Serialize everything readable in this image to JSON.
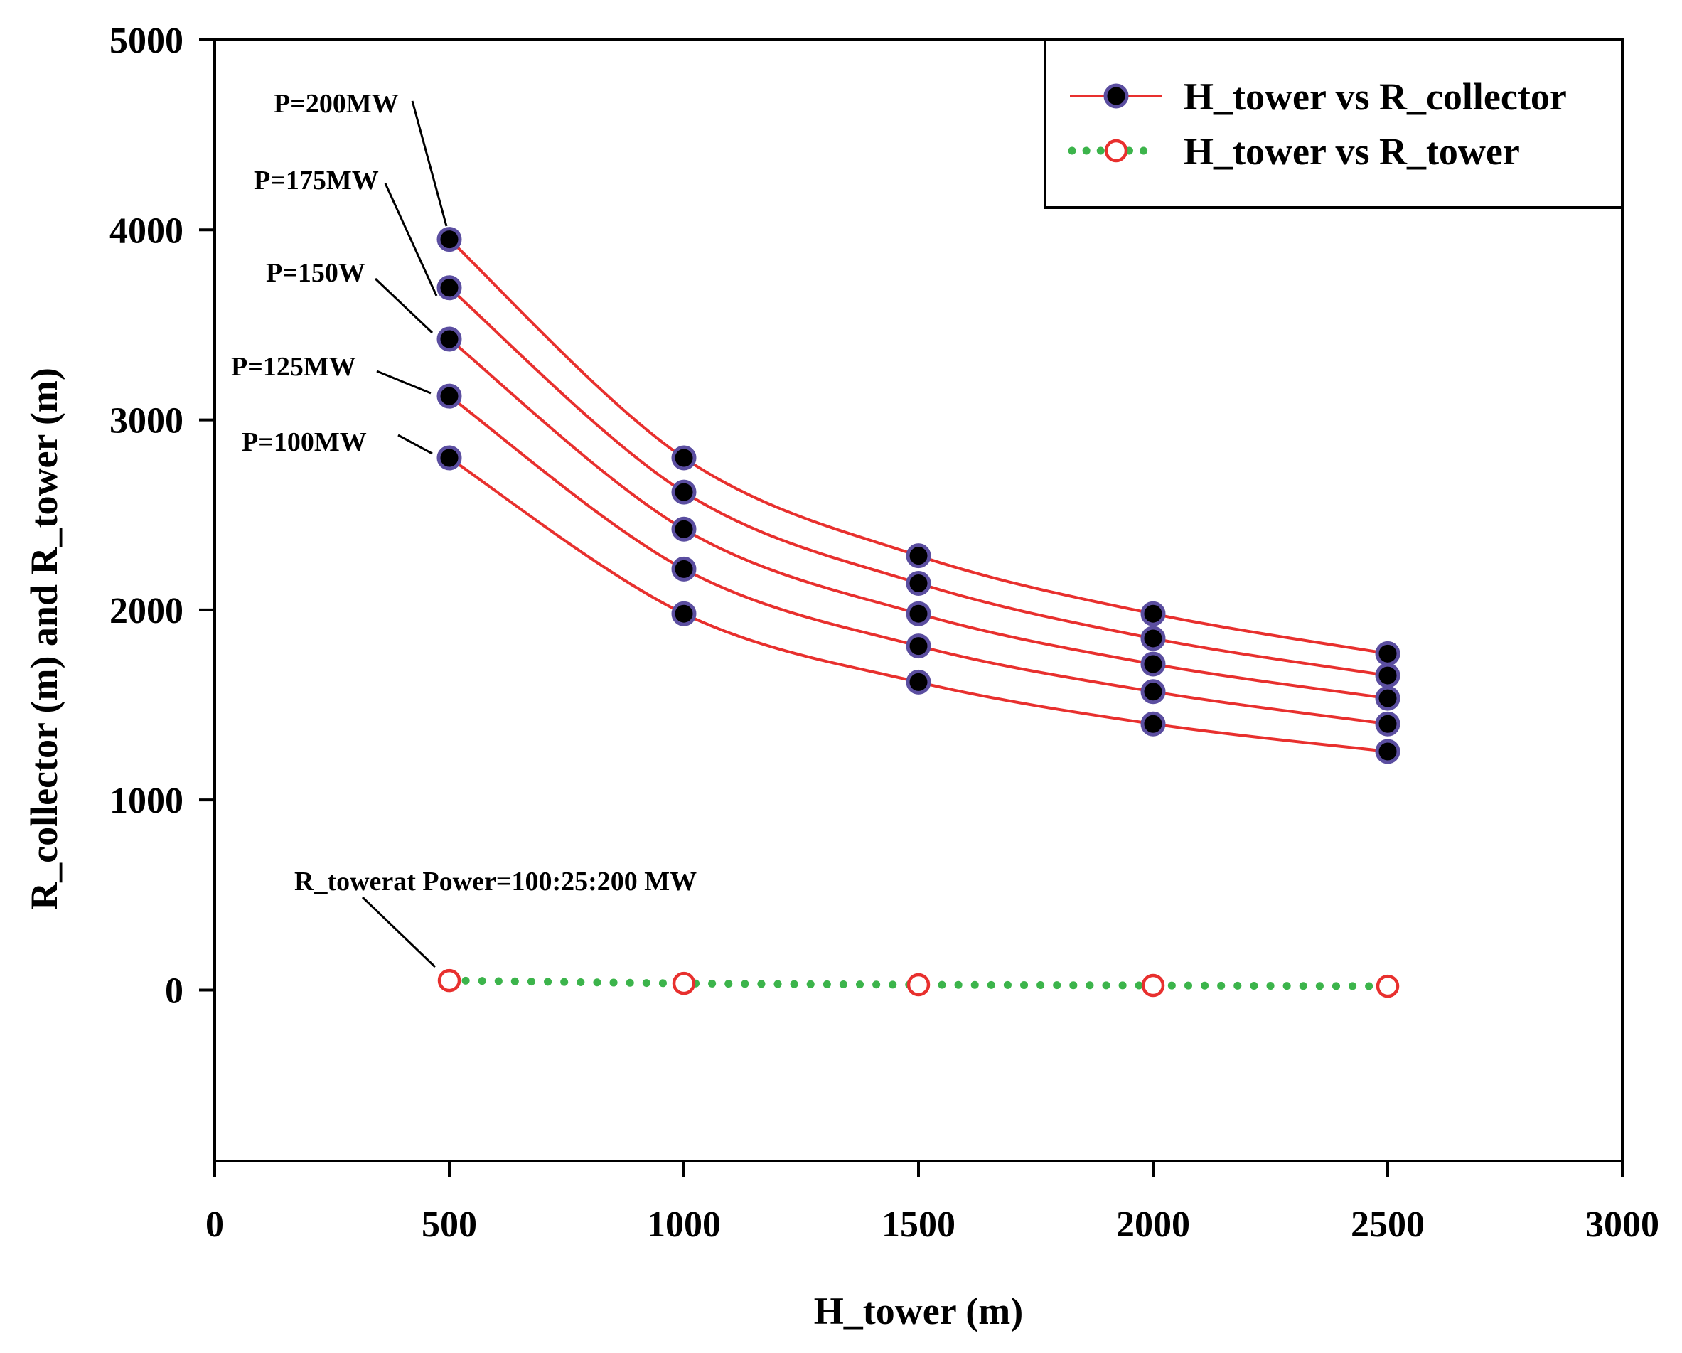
{
  "chart_data": {
    "type": "line",
    "xlabel": "H_tower (m)",
    "ylabel": "R_collector (m) and  R_tower (m)",
    "xlim": [
      0,
      3000
    ],
    "ylim": [
      -900,
      5000
    ],
    "xticks": [
      0,
      500,
      1000,
      1500,
      2000,
      2500,
      3000
    ],
    "yticks": [
      0,
      1000,
      2000,
      3000,
      4000,
      5000
    ],
    "x": [
      500,
      1000,
      1500,
      2000,
      2500
    ],
    "series": [
      {
        "name": "P=200MW",
        "group": "collector",
        "values": [
          3950,
          2800,
          2285,
          1980,
          1770
        ]
      },
      {
        "name": "P=175MW",
        "group": "collector",
        "values": [
          3695,
          2620,
          2140,
          1850,
          1655
        ]
      },
      {
        "name": "P=150W",
        "group": "collector",
        "values": [
          3425,
          2425,
          1980,
          1715,
          1535
        ]
      },
      {
        "name": "P=125MW",
        "group": "collector",
        "values": [
          3125,
          2215,
          1810,
          1570,
          1400
        ]
      },
      {
        "name": "P=100MW",
        "group": "collector",
        "values": [
          2800,
          1980,
          1620,
          1400,
          1255
        ]
      },
      {
        "name": "R_tower",
        "group": "tower",
        "values": [
          50,
          35,
          28,
          24,
          20
        ]
      }
    ],
    "legend": {
      "position": "top-right",
      "entries": [
        "H_tower vs R_collector",
        "H_tower vs R_tower"
      ]
    },
    "annotations": [
      {
        "text": "P=200MW",
        "target_series": 0
      },
      {
        "text": "P=175MW",
        "target_series": 1
      },
      {
        "text": "P=150W",
        "target_series": 2
      },
      {
        "text": "P=125MW",
        "target_series": 3
      },
      {
        "text": "P=100MW",
        "target_series": 4
      },
      {
        "text": "R_towerat Power=100:25:200 MW",
        "target_series": 5
      }
    ],
    "colors": {
      "collector_line": "#e8302e",
      "collector_marker_fill": "#000000",
      "collector_marker_edge": "#5b4ea0",
      "tower_line": "#3cb44b",
      "tower_marker_edge": "#e8302e"
    }
  }
}
